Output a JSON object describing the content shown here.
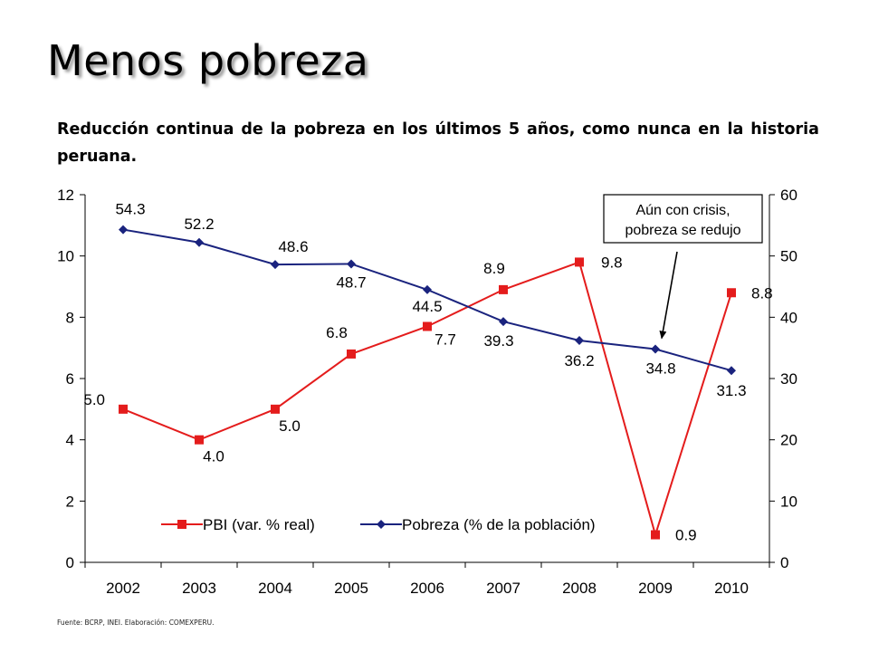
{
  "slide": {
    "title": "Menos pobreza",
    "subtitle": "Reducción continua de la pobreza en los últimos 5 años, como nunca en la historia peruana.",
    "source": "Fuente: BCRP, INEI. Elaboración: COMEXPERU."
  },
  "chart_data": {
    "type": "line",
    "title": "",
    "xlabel": "",
    "ylabel": "",
    "categories": [
      "2002",
      "2003",
      "2004",
      "2005",
      "2006",
      "2007",
      "2008",
      "2009",
      "2010"
    ],
    "y_left": {
      "min": 0,
      "max": 12,
      "ticks": [
        "0",
        "2",
        "4",
        "6",
        "8",
        "10",
        "12"
      ],
      "tick_values": [
        0,
        2,
        4,
        6,
        8,
        10,
        12
      ]
    },
    "y_right": {
      "min": 0,
      "max": 60,
      "ticks": [
        "0",
        "10",
        "20",
        "30",
        "40",
        "50",
        "60"
      ],
      "tick_values": [
        0,
        10,
        20,
        30,
        40,
        50,
        60
      ]
    },
    "grid": false,
    "legend_position": "bottom-center",
    "series": [
      {
        "name": "PBI (var. % real)",
        "axis": "left",
        "color": "#e41c1c",
        "marker": "square",
        "values": [
          5.0,
          4.0,
          5.0,
          6.8,
          7.7,
          8.9,
          9.8,
          0.9,
          8.8
        ],
        "labels": [
          "5.0",
          "4.0",
          "5.0",
          "6.8",
          "7.7",
          "8.9",
          "9.8",
          "0.9",
          "8.8"
        ]
      },
      {
        "name": "Pobreza (% de la población)",
        "axis": "right",
        "color": "#1a237e",
        "marker": "diamond",
        "values": [
          54.3,
          52.2,
          48.6,
          48.7,
          44.5,
          39.3,
          36.2,
          34.8,
          31.3
        ],
        "labels": [
          "54.3",
          "52.2",
          "48.6",
          "48.7",
          "44.5",
          "39.3",
          "36.2",
          "34.8",
          "31.3"
        ]
      }
    ],
    "annotation": {
      "lines": [
        "Aún con crisis,",
        "pobreza se redujo"
      ],
      "points_to": "2009"
    }
  }
}
